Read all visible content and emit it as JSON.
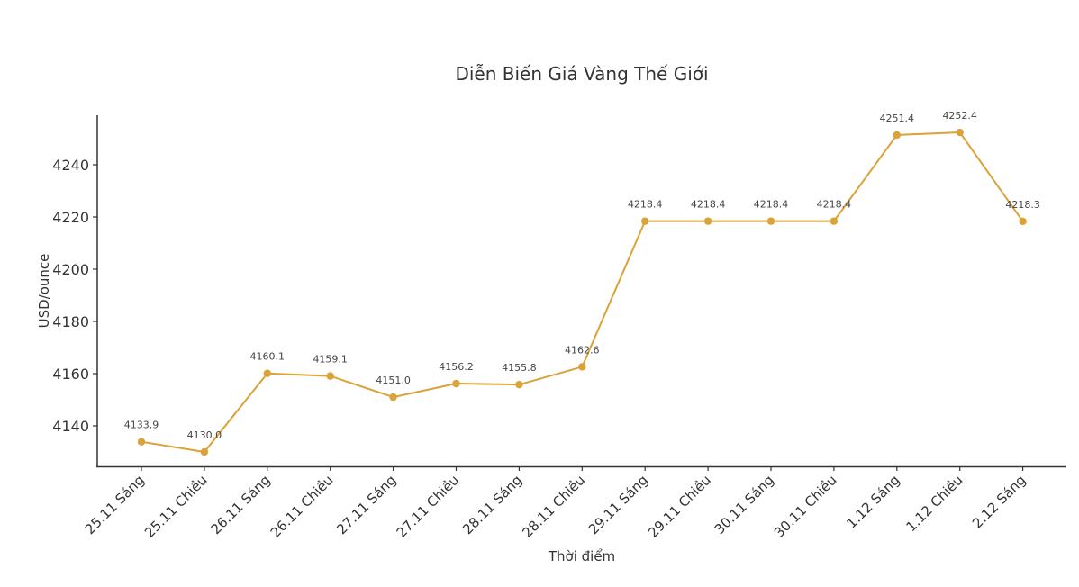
{
  "chart_data": {
    "type": "line",
    "title": "Diễn Biến Giá Vàng Thế Giới",
    "xlabel": "Thời điểm",
    "ylabel": "USD/ounce",
    "categories": [
      "25.11 Sáng",
      "25.11 Chiều",
      "26.11 Sáng",
      "26.11 Chiều",
      "27.11 Sáng",
      "27.11 Chiều",
      "28.11 Sáng",
      "28.11 Chiều",
      "29.11 Sáng",
      "29.11 Chiều",
      "30.11 Sáng",
      "30.11 Chiều",
      "1.12 Sáng",
      "1.12 Chiều",
      "2.12 Sáng"
    ],
    "series": [
      {
        "name": "Giá vàng",
        "color": "#DAA237",
        "values": [
          4133.9,
          4130.0,
          4160.1,
          4159.1,
          4151.0,
          4156.2,
          4155.8,
          4162.6,
          4218.4,
          4218.4,
          4218.4,
          4218.4,
          4251.4,
          4252.4,
          4218.3
        ]
      }
    ],
    "data_labels": [
      "4133.9",
      "4130.0",
      "4160.1",
      "4159.1",
      "4151.0",
      "4156.2",
      "4155.8",
      "4162.6",
      "4218.4",
      "4218.4",
      "4218.4",
      "4218.4",
      "4251.4",
      "4252.4",
      "4218.3"
    ],
    "yticks": [
      4140,
      4160,
      4180,
      4200,
      4220,
      4240
    ],
    "ylim": [
      4125.6,
      4258.6
    ],
    "grid": false,
    "legend": null
  }
}
